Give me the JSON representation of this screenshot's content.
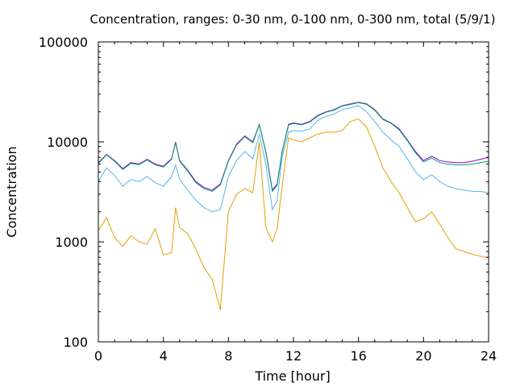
{
  "chart_data": {
    "type": "line",
    "title": "Concentration, ranges: 0-30 nm, 0-100 nm, 0-300 nm, total (5/9/1)",
    "xlabel": "Time [hour]",
    "ylabel": "Concentration",
    "xlim": [
      0,
      24
    ],
    "ylim": [
      100,
      100000
    ],
    "yscale": "log",
    "grid": false,
    "legend": "none",
    "x_ticks": [
      "0",
      "4",
      "8",
      "12",
      "16",
      "20",
      "24"
    ],
    "y_ticks": [
      "100",
      "1000",
      "10000",
      "100000"
    ],
    "x": [
      0,
      0.5,
      1,
      1.5,
      2,
      2.5,
      3,
      3.5,
      4,
      4.5,
      4.75,
      5,
      5.5,
      6,
      6.5,
      7,
      7.5,
      8,
      8.5,
      9,
      9.5,
      9.9,
      10.3,
      10.7,
      11,
      11.3,
      11.7,
      12,
      12.5,
      13,
      13.5,
      14,
      14.5,
      15,
      15.5,
      16,
      16.5,
      17,
      17.5,
      18,
      18.5,
      19,
      19.5,
      20,
      20.5,
      21,
      21.5,
      22,
      22.5,
      23,
      23.5,
      24
    ],
    "series": [
      {
        "color": "#9400d3",
        "values": [
          6200,
          7500,
          6500,
          5400,
          6200,
          6000,
          6700,
          6000,
          5700,
          6800,
          10000,
          6500,
          5200,
          4000,
          3500,
          3300,
          3800,
          6500,
          9500,
          11500,
          10000,
          15000,
          8000,
          3300,
          3800,
          8000,
          15000,
          15500,
          15000,
          16000,
          18500,
          20000,
          21000,
          23000,
          24000,
          25000,
          24000,
          21000,
          17000,
          15500,
          13500,
          10500,
          8000,
          6500,
          7200,
          6500,
          6300,
          6200,
          6200,
          6400,
          6700,
          7000
        ]
      },
      {
        "color": "#009e73",
        "values": [
          6100,
          7400,
          6400,
          5300,
          6100,
          5900,
          6600,
          5900,
          5600,
          6700,
          9800,
          6400,
          5100,
          3900,
          3400,
          3200,
          3700,
          6400,
          9300,
          11300,
          9800,
          14800,
          7900,
          3200,
          3700,
          7900,
          14700,
          15300,
          14800,
          15800,
          18200,
          19800,
          20800,
          22800,
          23700,
          24700,
          23700,
          20700,
          16800,
          15300,
          13200,
          10300,
          7800,
          6300,
          6900,
          6200,
          6000,
          5900,
          5900,
          6000,
          6200,
          6400
        ]
      },
      {
        "color": "#56b4e9",
        "values": [
          4000,
          5500,
          4600,
          3600,
          4200,
          4000,
          4500,
          3900,
          3600,
          4500,
          5900,
          4200,
          3300,
          2600,
          2200,
          2000,
          2100,
          4500,
          6500,
          8000,
          6800,
          12000,
          6000,
          2100,
          2600,
          7000,
          12500,
          13000,
          12800,
          13500,
          16500,
          18000,
          19000,
          21000,
          22000,
          23000,
          20000,
          16000,
          12500,
          10500,
          9000,
          6800,
          5000,
          4200,
          4700,
          4000,
          3600,
          3400,
          3300,
          3200,
          3200,
          3100
        ]
      },
      {
        "color": "#e69f00",
        "values": [
          1300,
          1750,
          1100,
          900,
          1150,
          1000,
          950,
          1350,
          740,
          780,
          2200,
          1400,
          1200,
          850,
          550,
          420,
          210,
          2000,
          3000,
          3400,
          3100,
          10000,
          1400,
          1000,
          1350,
          3600,
          11000,
          10500,
          10000,
          11000,
          12000,
          12500,
          12500,
          13000,
          16000,
          17000,
          14000,
          9000,
          5500,
          4000,
          3100,
          2200,
          1600,
          1700,
          2000,
          1500,
          1100,
          850,
          800,
          750,
          720,
          700
        ]
      }
    ]
  }
}
